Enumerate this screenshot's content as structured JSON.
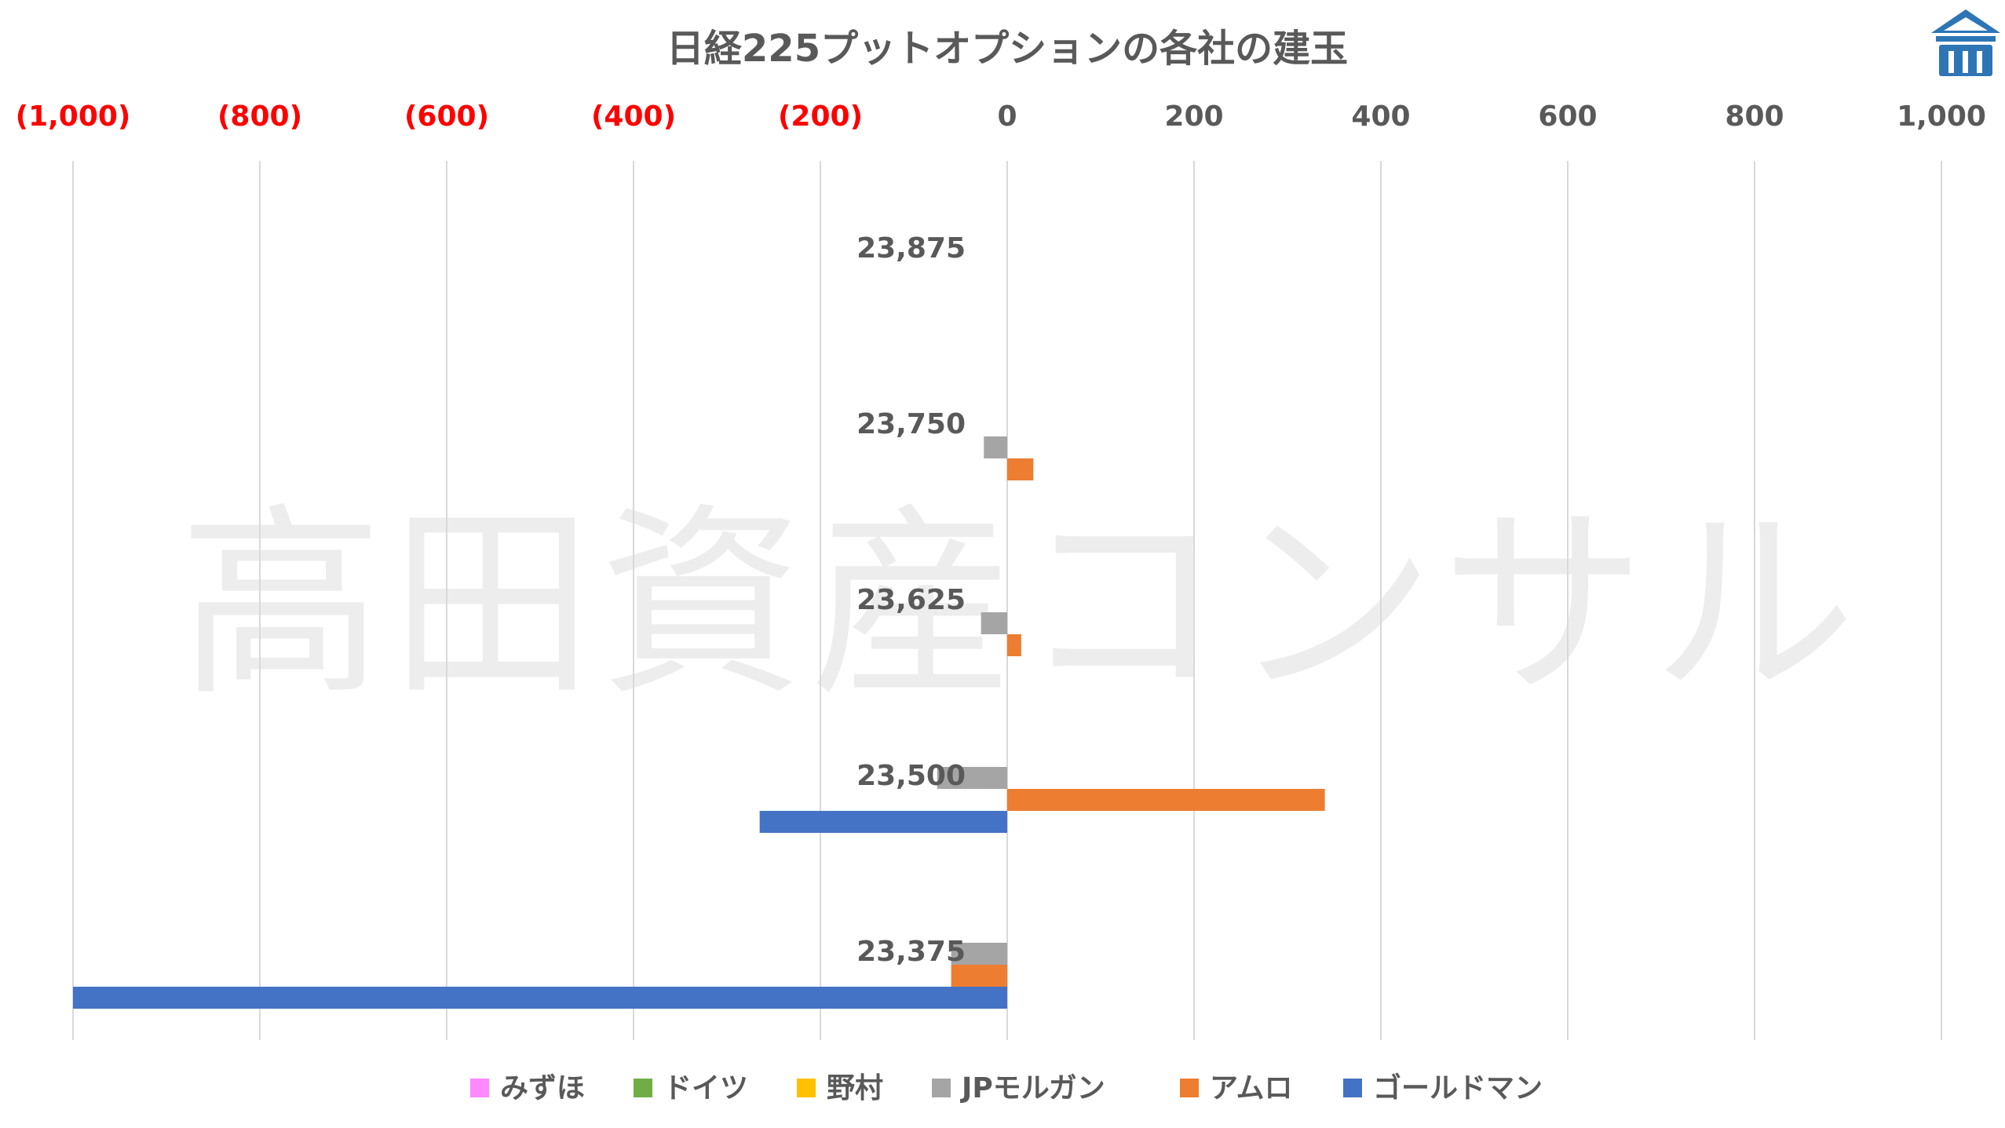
{
  "watermark": "高田資産コンサル",
  "logo": {
    "icon": "temple-logo-icon",
    "color": "#2e75b6"
  },
  "colors": {
    "negative_tick": "#ff0000",
    "positive_tick": "#595959",
    "grid": "#d9d9d9"
  },
  "chart_data": {
    "type": "bar",
    "orientation": "horizontal",
    "title": "日経225プットオプションの各社の建玉",
    "categories": [
      "23,875",
      "23,750",
      "23,625",
      "23,500",
      "23,375"
    ],
    "x_ticks": [
      "(1,000)",
      "(800)",
      "(600)",
      "(400)",
      "(200)",
      "0",
      "200",
      "400",
      "600",
      "800",
      "1,000"
    ],
    "xlim": [
      -1000,
      1000
    ],
    "grid": true,
    "legend_position": "bottom",
    "series": [
      {
        "name": "みずほ",
        "color": "#ff87ff",
        "values": [
          0,
          0,
          0,
          0,
          0
        ]
      },
      {
        "name": "ドイツ",
        "color": "#70ad47",
        "values": [
          0,
          0,
          0,
          0,
          0
        ]
      },
      {
        "name": "野村",
        "color": "#ffc000",
        "values": [
          0,
          0,
          0,
          0,
          0
        ]
      },
      {
        "name": "JPモルガン",
        "color": "#a5a5a5",
        "values": [
          0,
          -25,
          -28,
          -75,
          -60
        ]
      },
      {
        "name": "アムロ",
        "color": "#ed7d31",
        "values": [
          0,
          28,
          15,
          340,
          -60
        ]
      },
      {
        "name": "ゴールドマン",
        "color": "#4472c4",
        "values": [
          0,
          0,
          0,
          -265,
          -1000
        ]
      }
    ]
  }
}
